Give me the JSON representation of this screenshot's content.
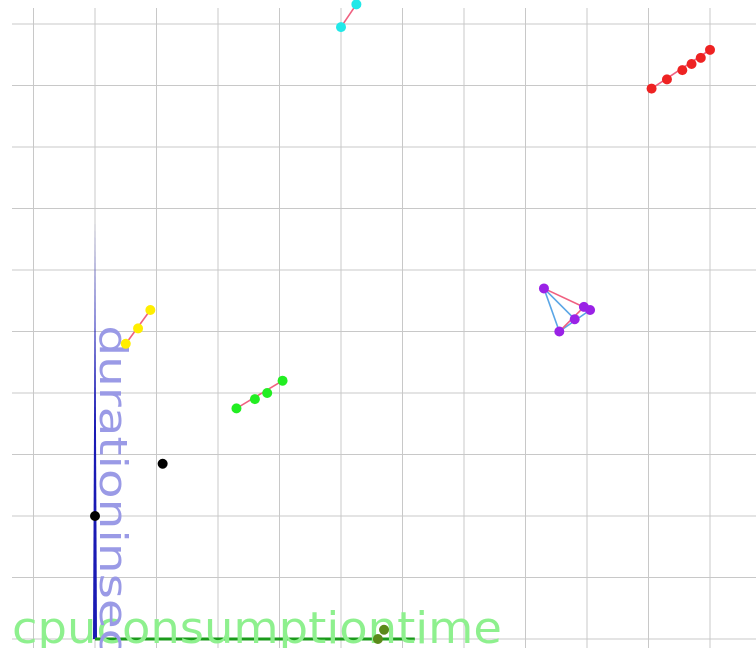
{
  "chart_data": {
    "type": "scatter",
    "title": "",
    "xlabel": "cpuconsumptiontime",
    "ylabel": "durationinsec",
    "xlim": [
      -1.5,
      10.5
    ],
    "ylim": [
      0,
      10.4
    ],
    "grid": true,
    "colors": {
      "grid": "#c8c8c8",
      "x_axis": "#1a9a1a",
      "y_axis": "#1a1ab4",
      "xlabel": "#8ef08e",
      "ylabel": "#9a9ae6",
      "edge_pink": "#f06080",
      "edge_blue": "#5aa6e6"
    },
    "series": [
      {
        "color": "#000000",
        "points": [
          [
            0.0,
            2.0
          ],
          [
            1.1,
            2.85
          ]
        ],
        "edges": []
      },
      {
        "color": "#ffee00",
        "points": [
          [
            0.5,
            4.8
          ],
          [
            0.7,
            5.05
          ],
          [
            0.9,
            5.35
          ]
        ],
        "edges": [
          [
            0,
            2,
            "pink"
          ]
        ]
      },
      {
        "color": "#22ee22",
        "points": [
          [
            2.3,
            3.75
          ],
          [
            2.6,
            3.9
          ],
          [
            2.8,
            4.0
          ],
          [
            3.05,
            4.2
          ]
        ],
        "edges": [
          [
            0,
            3,
            "pink"
          ]
        ]
      },
      {
        "color": "#22e8e8",
        "points": [
          [
            4.0,
            9.95
          ],
          [
            4.25,
            10.32
          ]
        ],
        "edges": [
          [
            0,
            1,
            "pink"
          ]
        ]
      },
      {
        "color": "#9a22e6",
        "points": [
          [
            7.3,
            5.7
          ],
          [
            7.55,
            5.0
          ],
          [
            7.8,
            5.2
          ],
          [
            7.95,
            5.4
          ],
          [
            8.05,
            5.35
          ]
        ],
        "edges": [
          [
            0,
            4,
            "pink"
          ],
          [
            0,
            1,
            "blue"
          ],
          [
            0,
            2,
            "blue"
          ],
          [
            1,
            4,
            "blue"
          ],
          [
            1,
            3,
            "pink"
          ],
          [
            3,
            4,
            "blue"
          ]
        ]
      },
      {
        "color": "#ee2222",
        "points": [
          [
            9.05,
            8.95
          ],
          [
            9.3,
            9.1
          ],
          [
            9.55,
            9.25
          ],
          [
            9.7,
            9.35
          ],
          [
            9.85,
            9.45
          ],
          [
            10.0,
            9.58
          ]
        ],
        "edges": [
          [
            0,
            5,
            "pink"
          ]
        ]
      },
      {
        "color": "#5a8a1a",
        "points": [
          [
            4.6,
            0.0
          ],
          [
            4.7,
            0.15
          ]
        ],
        "edges": []
      }
    ]
  }
}
